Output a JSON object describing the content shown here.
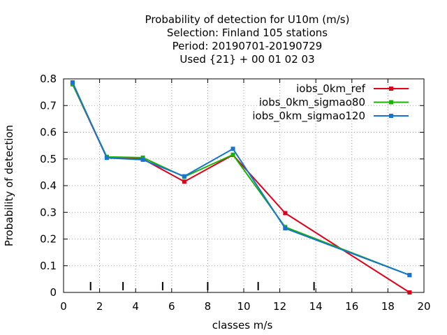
{
  "chart_data": {
    "type": "line",
    "title_lines": [
      "Probability of detection  for U10m (m/s)",
      "Selection: Finland    105 stations",
      "Period: 20190701-20190729",
      "Used {21} + 00 01 02 03"
    ],
    "xlabel": "classes m/s",
    "ylabel": "Probability of detection",
    "xlim": [
      0,
      20
    ],
    "ylim": [
      0,
      0.8
    ],
    "xticks": [
      0,
      2,
      4,
      6,
      8,
      10,
      12,
      14,
      16,
      18,
      20
    ],
    "xtick_labels": [
      "0",
      "2",
      "4",
      "6",
      "8",
      "10",
      "12",
      "14",
      "16",
      "18",
      "20"
    ],
    "yticks": [
      0,
      0.1,
      0.2,
      0.3,
      0.4,
      0.5,
      0.6,
      0.7,
      0.8
    ],
    "ytick_labels": [
      "0",
      "0.1",
      "0.2",
      "0.3",
      "0.4",
      "0.5",
      "0.6",
      "0.7",
      "0.8"
    ],
    "class_boundaries": [
      1.5,
      3.3,
      5.5,
      8.0,
      10.8,
      13.9
    ],
    "grid": true,
    "legend_position": "top-right",
    "series": [
      {
        "name": "iobs_0km_ref",
        "color": "#e0001a",
        "x": [
          0.5,
          2.4,
          4.4,
          6.7,
          9.4,
          12.3,
          19.2
        ],
        "y": [
          0.78,
          0.505,
          0.5,
          0.415,
          0.515,
          0.297,
          0.0
        ]
      },
      {
        "name": "iobs_0km_sigmao80",
        "color": "#18b400",
        "x": [
          0.5,
          2.4,
          4.4,
          6.7,
          9.4,
          12.3,
          19.2
        ],
        "y": [
          0.78,
          0.508,
          0.505,
          0.433,
          0.516,
          0.245,
          0.065
        ]
      },
      {
        "name": "iobs_0km_sigmao120",
        "color": "#1874d2",
        "x": [
          0.5,
          2.4,
          4.4,
          6.7,
          9.4,
          12.3,
          19.2
        ],
        "y": [
          0.787,
          0.504,
          0.497,
          0.435,
          0.538,
          0.24,
          0.065
        ]
      }
    ]
  }
}
